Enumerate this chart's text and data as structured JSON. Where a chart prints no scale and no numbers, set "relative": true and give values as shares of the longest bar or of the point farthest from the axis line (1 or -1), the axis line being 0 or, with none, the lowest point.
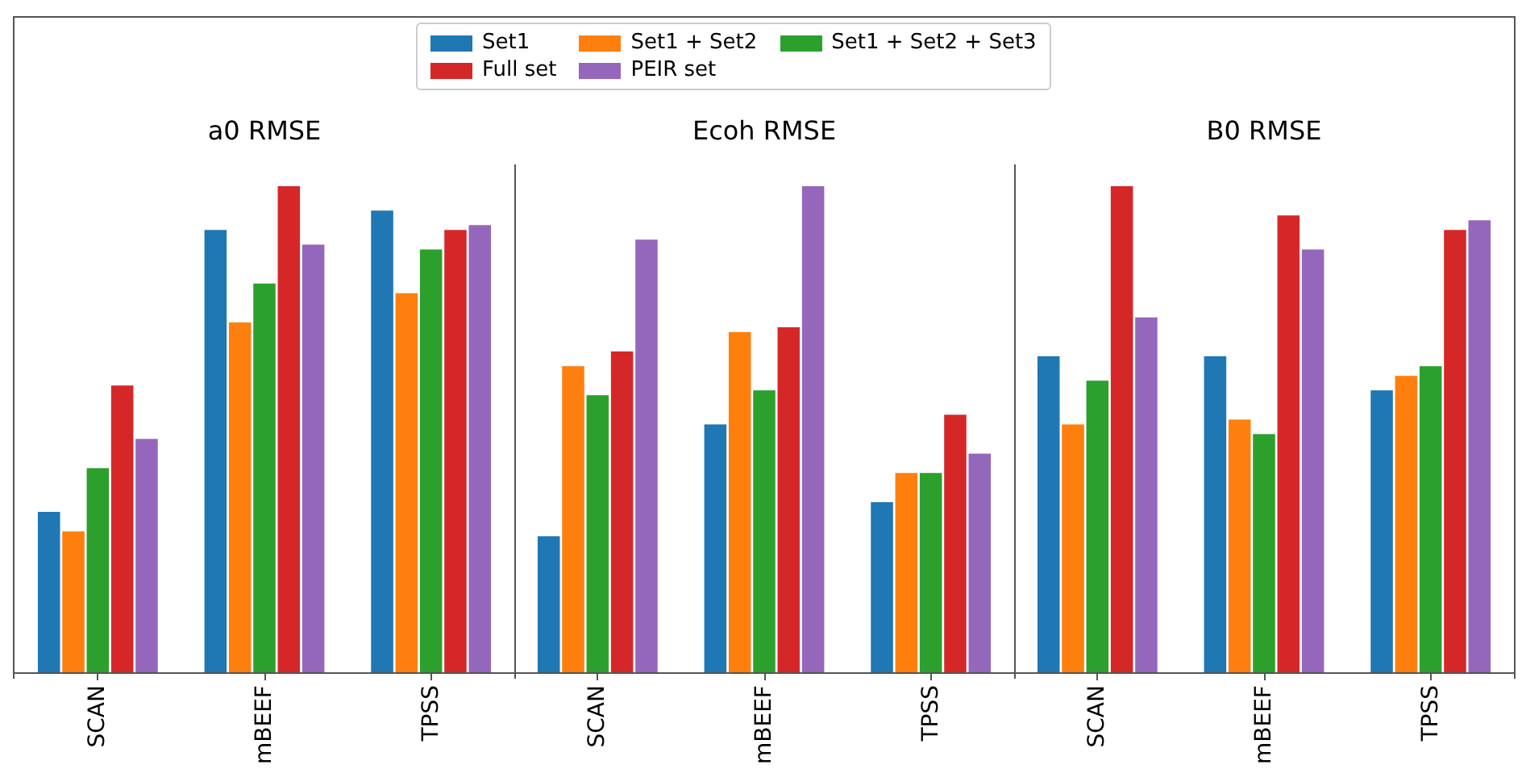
{
  "chart_data": [
    {
      "type": "bar",
      "title": "a0 RMSE",
      "categories": [
        "SCAN",
        "mBEEF",
        "TPSS"
      ],
      "relative": true,
      "tick_labels": "x",
      "legend": "top",
      "series": [
        {
          "name": "Set1",
          "color": "#1f77b4",
          "values": [
            0.33,
            0.91,
            0.95
          ]
        },
        {
          "name": "Set1 + Set2",
          "color": "#ff7f0e",
          "values": [
            0.29,
            0.72,
            0.78
          ]
        },
        {
          "name": "Set1 + Set2 + Set3",
          "color": "#2ca02c",
          "values": [
            0.42,
            0.8,
            0.87
          ]
        },
        {
          "name": "Full set",
          "color": "#d62728",
          "values": [
            0.59,
            1.0,
            0.91
          ]
        },
        {
          "name": "PEIR set",
          "color": "#9467bd",
          "values": [
            0.48,
            0.88,
            0.92
          ]
        }
      ]
    },
    {
      "type": "bar",
      "title": "Ecoh RMSE",
      "categories": [
        "SCAN",
        "mBEEF",
        "TPSS"
      ],
      "relative": true,
      "tick_labels": "x",
      "series": [
        {
          "color": "#1f77b4",
          "values": [
            0.28,
            0.51,
            0.35
          ]
        },
        {
          "color": "#ff7f0e",
          "values": [
            0.63,
            0.7,
            0.41
          ]
        },
        {
          "color": "#2ca02c",
          "values": [
            0.57,
            0.58,
            0.41
          ]
        },
        {
          "color": "#d62728",
          "values": [
            0.66,
            0.71,
            0.53
          ]
        },
        {
          "color": "#9467bd",
          "values": [
            0.89,
            1.0,
            0.45
          ]
        }
      ]
    },
    {
      "type": "bar",
      "title": "B0 RMSE",
      "categories": [
        "SCAN",
        "mBEEF",
        "TPSS"
      ],
      "relative": true,
      "tick_labels": "x",
      "series": [
        {
          "color": "#1f77b4",
          "values": [
            0.65,
            0.65,
            0.58
          ]
        },
        {
          "color": "#ff7f0e",
          "values": [
            0.51,
            0.52,
            0.61
          ]
        },
        {
          "color": "#2ca02c",
          "values": [
            0.6,
            0.49,
            0.63
          ]
        },
        {
          "color": "#d62728",
          "values": [
            1.0,
            0.94,
            0.91
          ]
        },
        {
          "color": "#9467bd",
          "values": [
            0.73,
            0.87,
            0.93
          ]
        }
      ]
    }
  ]
}
